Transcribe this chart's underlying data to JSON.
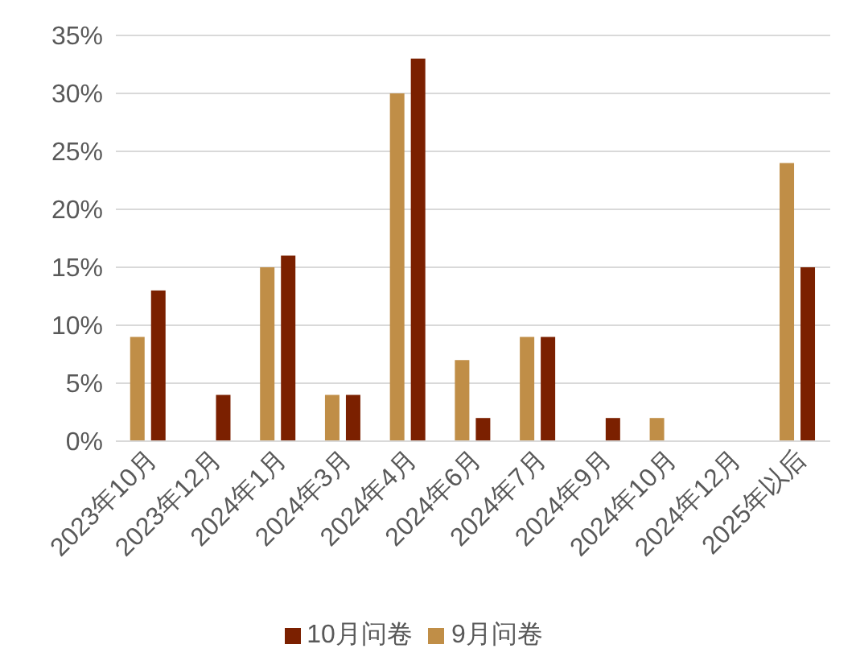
{
  "chart_data": {
    "type": "bar",
    "categories": [
      "2023年10月",
      "2023年12月",
      "2024年1月",
      "2024年3月",
      "2024年4月",
      "2024年6月",
      "2024年7月",
      "2024年9月",
      "2024年10月",
      "2024年12月",
      "2025年以后"
    ],
    "series": [
      {
        "name": "9月问卷",
        "color": "#c08e47",
        "values": [
          9,
          0,
          15,
          4,
          30,
          7,
          9,
          0,
          2,
          0,
          24
        ]
      },
      {
        "name": "10月问卷",
        "color": "#7b2000",
        "values": [
          13,
          4,
          16,
          4,
          33,
          2,
          9,
          2,
          0,
          0,
          15
        ]
      }
    ],
    "ylim": [
      0,
      35
    ],
    "yticks": [
      {
        "value": 0,
        "label": "0%"
      },
      {
        "value": 5,
        "label": "5%"
      },
      {
        "value": 10,
        "label": "10%"
      },
      {
        "value": 15,
        "label": "15%"
      },
      {
        "value": 20,
        "label": "20%"
      },
      {
        "value": 25,
        "label": "25%"
      },
      {
        "value": 30,
        "label": "30%"
      },
      {
        "value": 35,
        "label": "35%"
      }
    ],
    "grid": "y",
    "legend": "bottom"
  }
}
